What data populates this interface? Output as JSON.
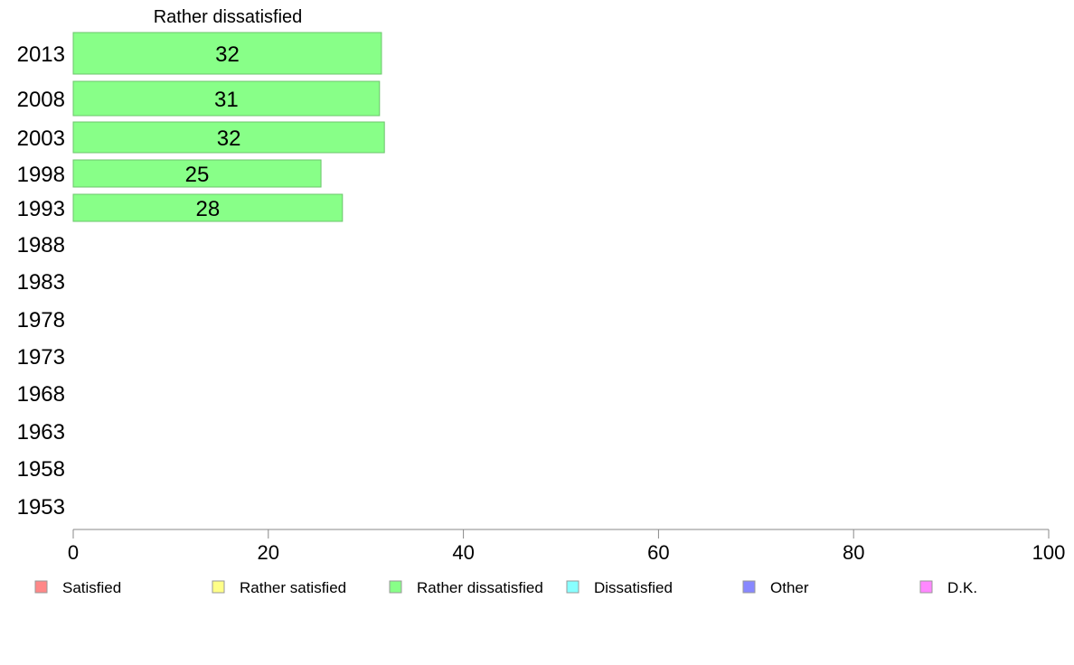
{
  "chart_data": {
    "type": "bar",
    "orientation": "horizontal",
    "title": "Rather dissatisfied",
    "categories": [
      "2013",
      "2008",
      "2003",
      "1998",
      "1993",
      "1988",
      "1983",
      "1978",
      "1973",
      "1968",
      "1963",
      "1958",
      "1953"
    ],
    "series": [
      {
        "name": "Rather dissatisfied",
        "color": "#88ff88",
        "values": [
          31.6,
          31.4,
          31.9,
          25.4,
          27.6,
          null,
          null,
          null,
          null,
          null,
          null,
          null,
          null
        ],
        "labels": [
          "32",
          "31",
          "32",
          "25",
          "28",
          null,
          null,
          null,
          null,
          null,
          null,
          null,
          null
        ]
      }
    ],
    "xlim": [
      0,
      100
    ],
    "xticks": [
      "0",
      "20",
      "40",
      "60",
      "80",
      "100"
    ],
    "grid": false,
    "legend": {
      "position": "bottom",
      "items": [
        {
          "label": "Satisfied",
          "color": "#ff8888"
        },
        {
          "label": "Rather satisfied",
          "color": "#ffff88"
        },
        {
          "label": "Rather dissatisfied",
          "color": "#88ff88"
        },
        {
          "label": "Dissatisfied",
          "color": "#88ffff"
        },
        {
          "label": "Other",
          "color": "#8888ff"
        },
        {
          "label": "D.K.",
          "color": "#ff88ff"
        }
      ]
    }
  }
}
